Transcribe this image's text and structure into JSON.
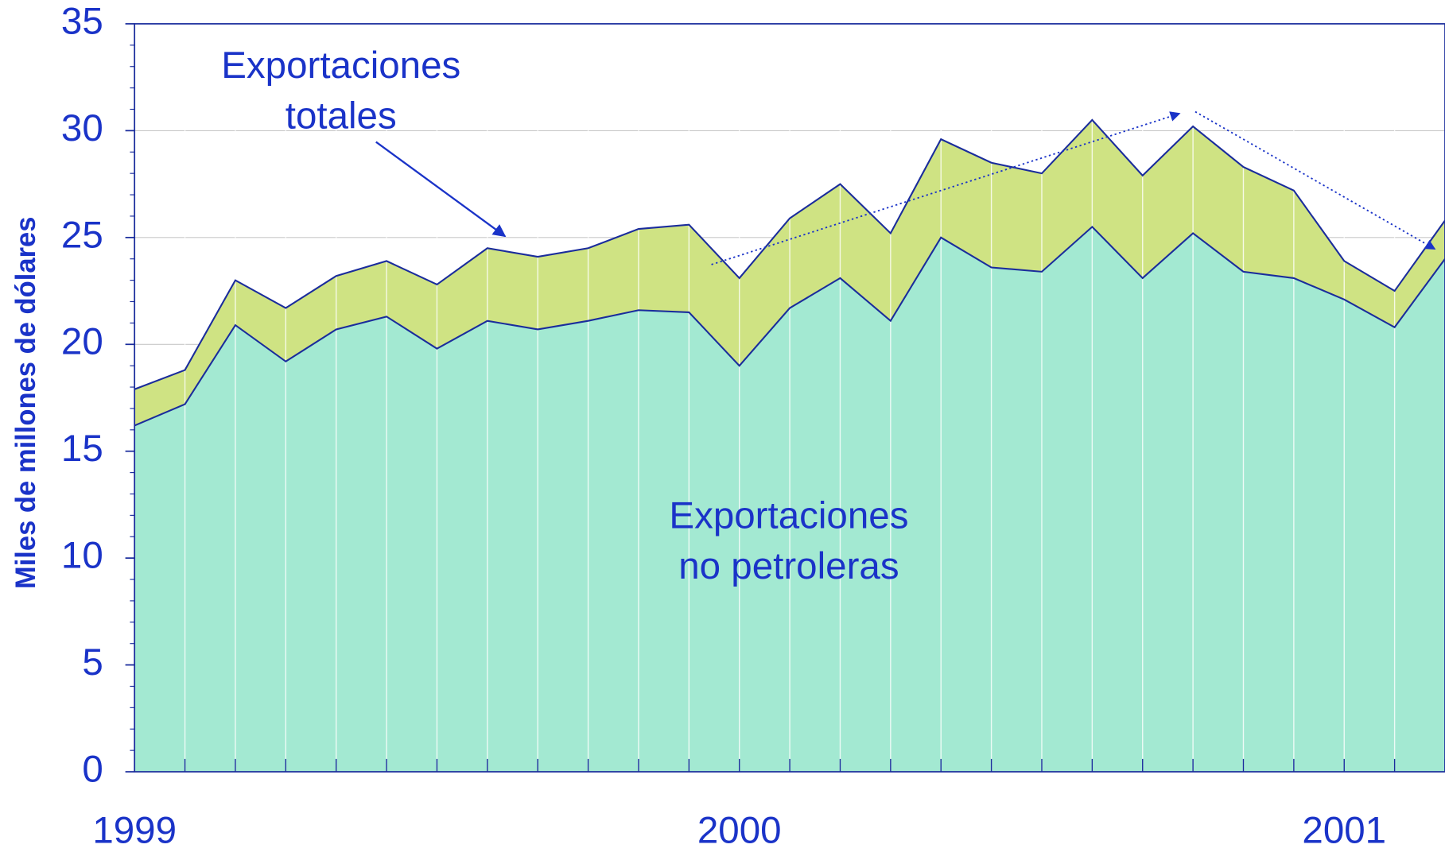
{
  "chart_data": {
    "type": "area",
    "ylabel": "Miles de millones de dólares",
    "categories": [
      "1999",
      null,
      null,
      null,
      null,
      null,
      null,
      null,
      null,
      null,
      null,
      null,
      "2000",
      null,
      null,
      null,
      null,
      null,
      null,
      null,
      null,
      null,
      null,
      null,
      "2001",
      null,
      null
    ],
    "series": [
      {
        "name": "Exportaciones totales",
        "color": "#cfe383",
        "values": [
          17.9,
          18.8,
          23.0,
          21.7,
          23.2,
          23.9,
          22.8,
          24.5,
          24.1,
          24.5,
          25.4,
          25.6,
          23.1,
          25.9,
          27.5,
          25.2,
          29.6,
          28.5,
          28.0,
          30.5,
          27.9,
          30.2,
          28.3,
          27.2,
          23.9,
          22.5,
          25.8
        ]
      },
      {
        "name": "Exportaciones no petroleras",
        "color": "#a3e9d2",
        "values": [
          16.2,
          17.2,
          20.9,
          19.2,
          20.7,
          21.3,
          19.8,
          21.1,
          20.7,
          21.1,
          21.6,
          21.5,
          19.0,
          21.7,
          23.1,
          21.1,
          25.0,
          23.6,
          23.4,
          25.5,
          23.1,
          25.2,
          23.4,
          23.1,
          22.1,
          20.8,
          24.0
        ]
      }
    ],
    "line_color": "#1a2c9c",
    "ylim": [
      0,
      35
    ],
    "yticks": [
      0,
      5,
      10,
      15,
      20,
      25,
      30,
      35
    ],
    "grid": true
  }
}
